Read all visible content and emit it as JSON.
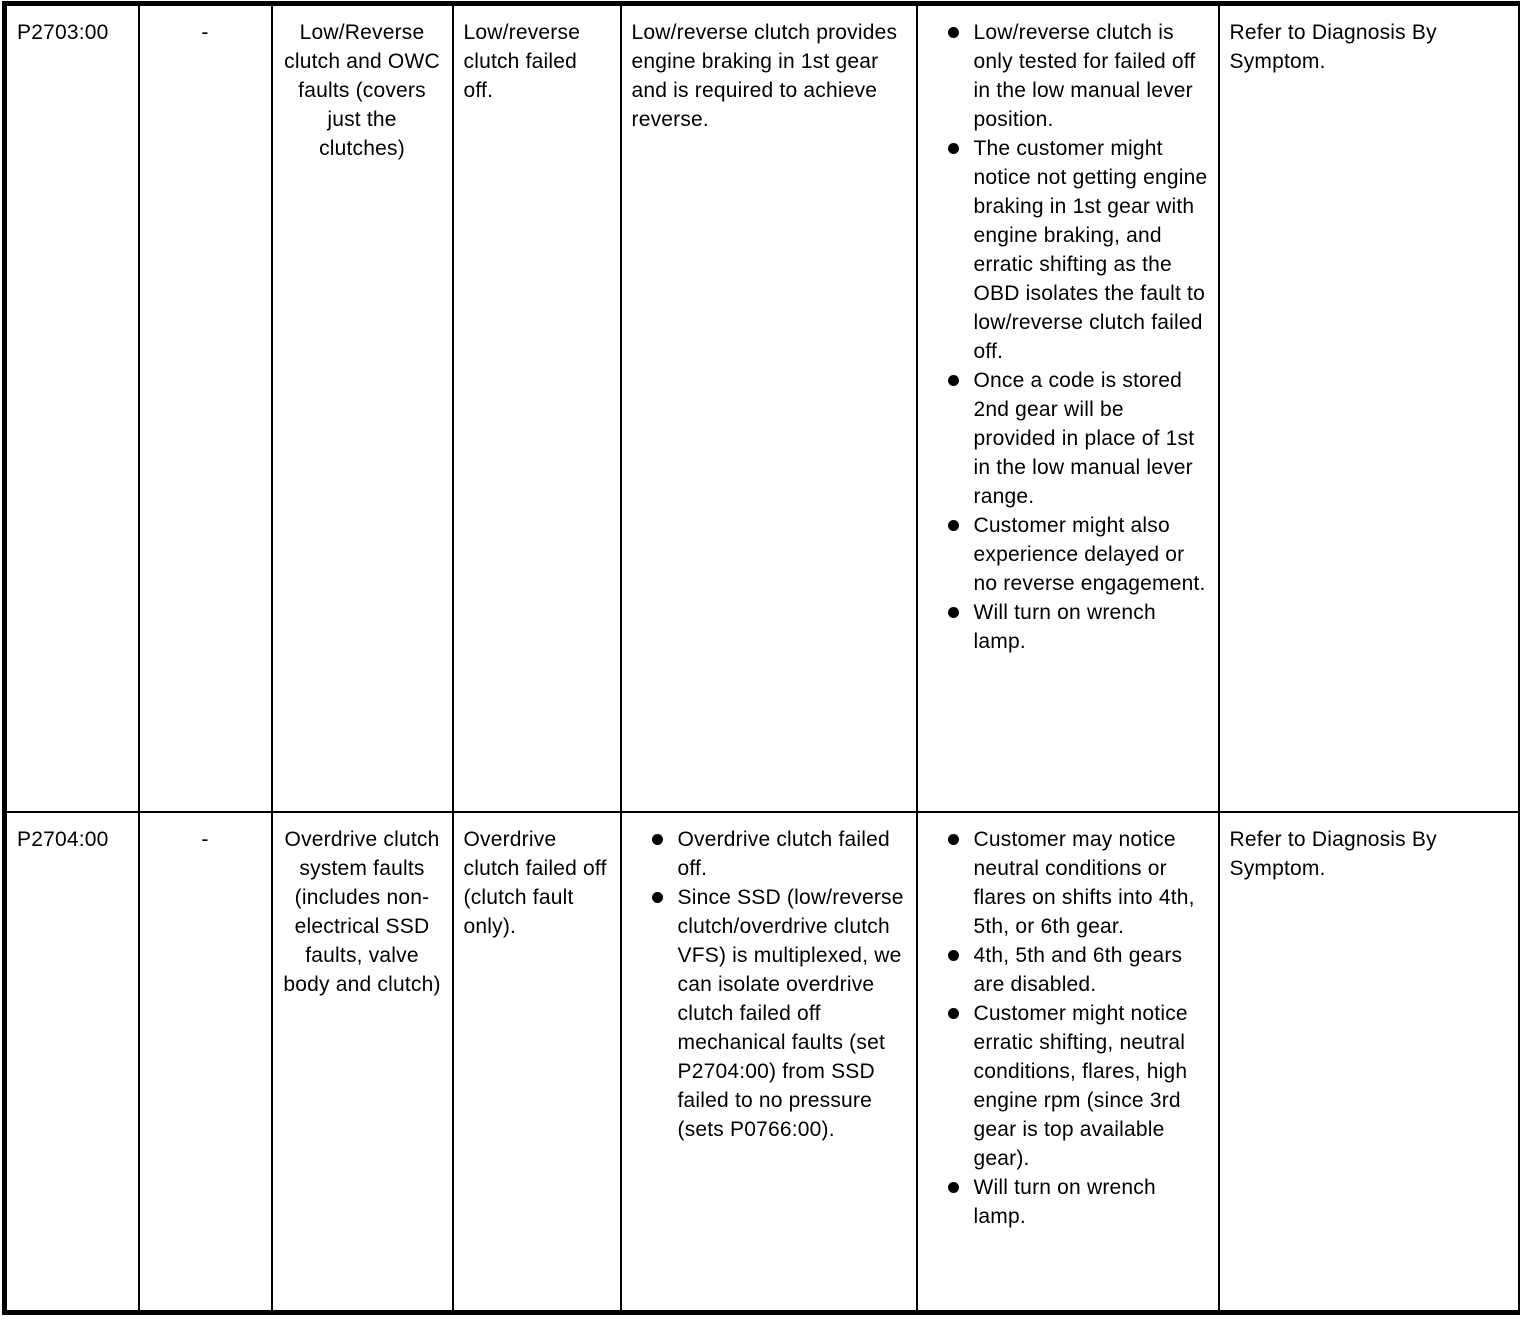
{
  "document": {
    "type": "diagnostic-trouble-code-table",
    "rows": [
      {
        "code": "P2703:00",
        "secondary": "-",
        "description": "Low/Reverse clutch and OWC faults (covers just the clutches)",
        "failure_mode": "Low/reverse clutch failed off.",
        "function_text": "Low/reverse clutch provides engine braking in 1st gear and is required to achieve reverse.",
        "function_bullets": [],
        "symptom_bullets": [
          "Low/reverse clutch is only tested for failed off in the low manual lever position.",
          "The customer might notice not getting engine braking in 1st gear with engine braking, and erratic shifting as the OBD isolates the fault to low/reverse clutch failed off.",
          "Once a code is stored 2nd gear will be provided in place of 1st in the low manual lever range.",
          "Customer might also experience delayed or no reverse engagement.",
          "Will turn on wrench lamp."
        ],
        "action": "Refer to Diagnosis By Symptom."
      },
      {
        "code": "P2704:00",
        "secondary": "-",
        "description": "Overdrive clutch system faults (includes non-electrical SSD faults, valve body and clutch)",
        "failure_mode": "Overdrive clutch failed off (clutch fault only).",
        "function_text": "",
        "function_bullets": [
          "Overdrive clutch failed off.",
          "Since SSD (low/reverse clutch/overdrive clutch VFS) is multiplexed, we can isolate overdrive clutch failed off mechanical faults (set P2704:00) from SSD failed to no pressure (sets P0766:00)."
        ],
        "symptom_bullets": [
          "Customer may notice neutral conditions or flares on shifts into 4th, 5th, or 6th gear.",
          "4th, 5th and 6th gears are disabled.",
          "Customer might notice erratic shifting, neutral conditions, flares, high engine rpm (since 3rd gear is top available gear).",
          "Will turn on wrench lamp."
        ],
        "action": "Refer to Diagnosis By Symptom."
      }
    ]
  }
}
